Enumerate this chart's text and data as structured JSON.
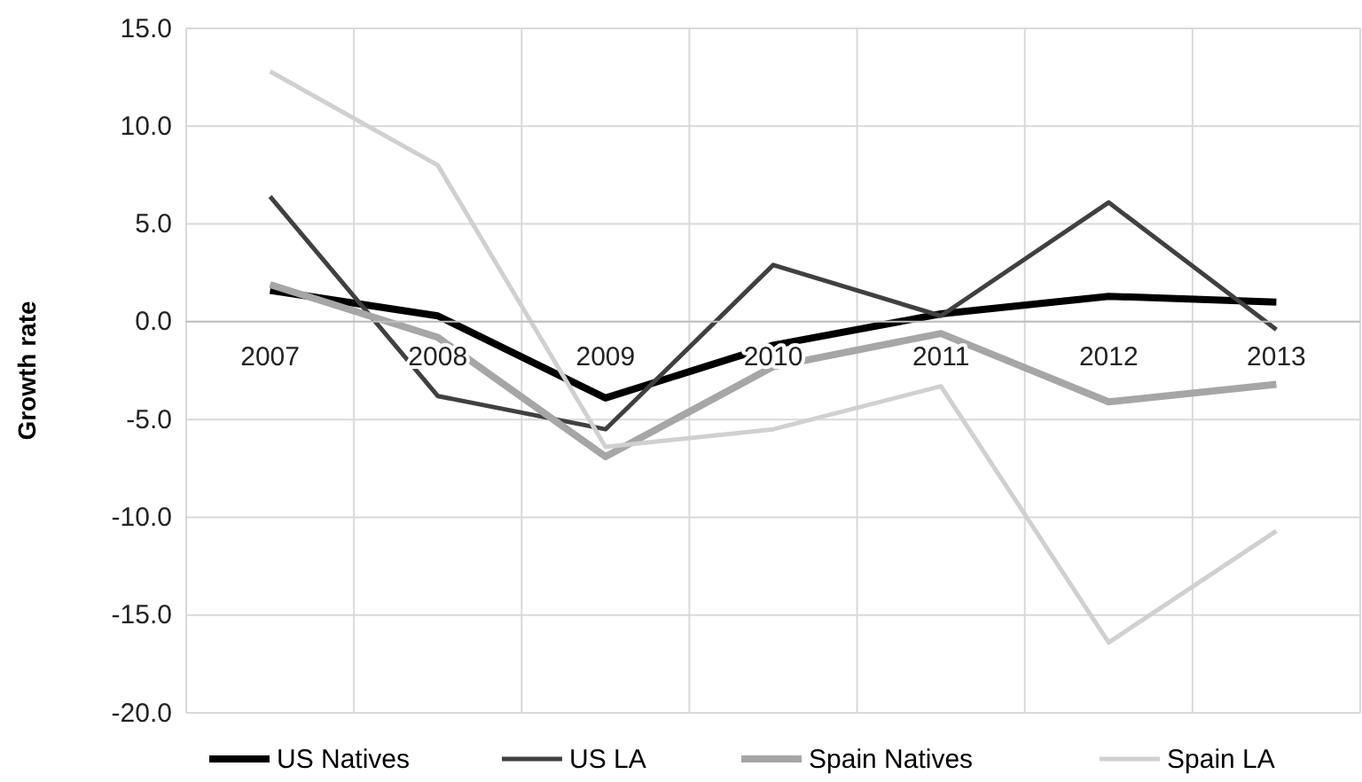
{
  "chart_data": {
    "type": "line",
    "ylabel": "Growth rate",
    "categories": [
      "2007",
      "2008",
      "2009",
      "2010",
      "2011",
      "2012",
      "2013"
    ],
    "series": [
      {
        "name": "US Natives",
        "color": "#000000",
        "values": [
          1.6,
          0.3,
          -3.9,
          -1.2,
          0.4,
          1.3,
          1.0
        ]
      },
      {
        "name": "US LA",
        "color": "#404040",
        "values": [
          6.4,
          -3.8,
          -5.5,
          2.9,
          0.3,
          6.1,
          -0.4
        ]
      },
      {
        "name": "Spain Natives",
        "color": "#a6a6a6",
        "values": [
          1.9,
          -0.8,
          -6.9,
          -2.3,
          -0.6,
          -4.1,
          -3.2
        ]
      },
      {
        "name": "Spain LA",
        "color": "#d0d0d0",
        "values": [
          12.8,
          8.0,
          -6.4,
          -5.5,
          -3.3,
          -16.4,
          -10.7
        ]
      }
    ],
    "ylim": [
      -20,
      15
    ],
    "yticks": [
      {
        "value": -20,
        "label": "-20.0"
      },
      {
        "value": -15,
        "label": "-15.0"
      },
      {
        "value": -10,
        "label": "-10.0"
      },
      {
        "value": -5,
        "label": "-5.0"
      },
      {
        "value": 0,
        "label": "0.0"
      },
      {
        "value": 5,
        "label": "5.0"
      },
      {
        "value": 10,
        "label": "10.0"
      },
      {
        "value": 15,
        "label": "15.0"
      }
    ],
    "grid": true,
    "legend": "bottom",
    "marker": "none",
    "line_style": "solid"
  }
}
